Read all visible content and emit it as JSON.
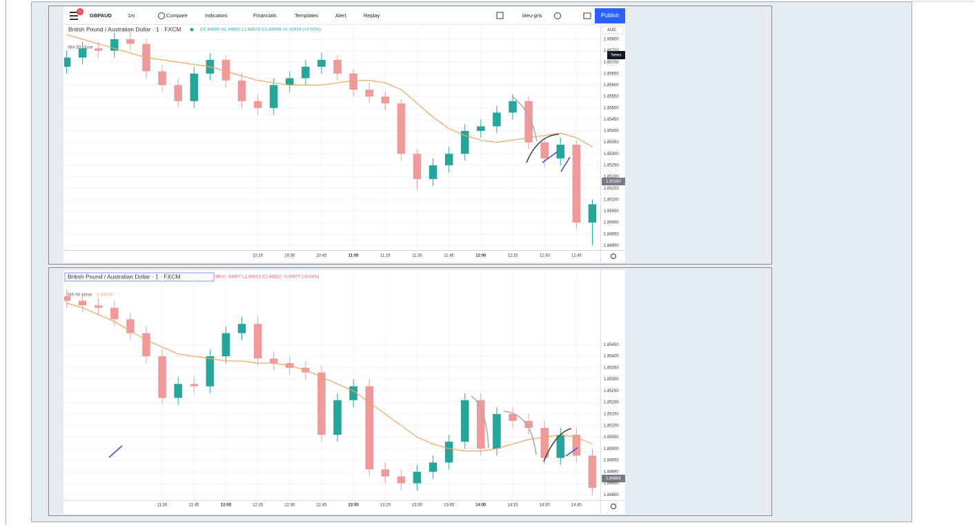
{
  "toolbar": {
    "badge": "11",
    "symbol": "GBPAUD",
    "interval": "1m",
    "compare": "Compare",
    "indicators": "Indicators",
    "financials": "Financials",
    "templates": "Templates",
    "alert": "Alert",
    "replay": "Replay",
    "layout": "bleu-gris",
    "publish": "Publish"
  },
  "chart_data": [
    {
      "type": "candlestick",
      "title": "British Pound / Australian Dollar · 1 · FXCM",
      "ohlc": "O1.84580 H1.84602 L1.84578 C1.84599 +0.00019 (+0.01%)",
      "currency": "AUD",
      "news": "News",
      "last_price": "1.85180",
      "categories": [
        null,
        null,
        null,
        null,
        null,
        null,
        null,
        null,
        null,
        null,
        null,
        null,
        "10:15",
        null,
        "10:30",
        null,
        "10:45",
        null,
        "11:00",
        null,
        "11:15",
        null,
        "11:30",
        null,
        "11:45",
        null,
        "12:00",
        null,
        "12:15",
        null,
        "12:30",
        null,
        "12:45",
        null
      ],
      "open": [
        1.8568,
        1.8572,
        1.8576,
        1.8575,
        1.858,
        1.8578,
        1.8566,
        1.856,
        1.8553,
        1.8565,
        1.8571,
        1.8562,
        1.8553,
        1.855,
        1.856,
        1.8563,
        1.8568,
        1.8571,
        1.8565,
        1.8558,
        1.8555,
        1.8552,
        1.853,
        1.8519,
        1.8525,
        1.853,
        1.854,
        1.8542,
        1.8548,
        1.8553,
        1.8535,
        1.8528,
        1.8534,
        1.85
      ],
      "high": [
        1.8575,
        1.8579,
        1.8579,
        1.8583,
        1.8583,
        1.858,
        1.8569,
        1.8563,
        1.8568,
        1.8574,
        1.8573,
        1.8565,
        1.8556,
        1.8563,
        1.8566,
        1.8571,
        1.8574,
        1.8573,
        1.8567,
        1.8561,
        1.8557,
        1.8554,
        1.8532,
        1.8528,
        1.8533,
        1.8543,
        1.8545,
        1.8551,
        1.8556,
        1.8555,
        1.8537,
        1.8537,
        1.8536,
        1.851
      ],
      "low": [
        1.8565,
        1.8569,
        1.8572,
        1.8572,
        1.8575,
        1.8563,
        1.8557,
        1.855,
        1.855,
        1.8562,
        1.8559,
        1.855,
        1.8547,
        1.8547,
        1.8557,
        1.856,
        1.8565,
        1.8562,
        1.8555,
        1.8552,
        1.8549,
        1.8527,
        1.8514,
        1.8516,
        1.8522,
        1.8527,
        1.8537,
        1.8539,
        1.8545,
        1.8532,
        1.8524,
        1.8525,
        1.8497,
        1.849
      ],
      "close": [
        1.8572,
        1.8576,
        1.8575,
        1.858,
        1.8578,
        1.8566,
        1.856,
        1.8553,
        1.8565,
        1.8571,
        1.8562,
        1.8553,
        1.855,
        1.856,
        1.8563,
        1.8568,
        1.8571,
        1.8565,
        1.8558,
        1.8555,
        1.8552,
        1.853,
        1.8519,
        1.8525,
        1.853,
        1.854,
        1.8542,
        1.8548,
        1.8553,
        1.8535,
        1.8528,
        1.8534,
        1.85,
        1.8508
      ],
      "up_color": "#26a69a",
      "down_color": "#ef9a9a",
      "series": [
        {
          "name": "MA 50 close",
          "color": "#f7a35c",
          "values": [
            1.8582,
            1.858,
            1.8578,
            1.8576,
            1.8574,
            1.8572,
            1.8571,
            1.857,
            1.8569,
            1.8568,
            1.8566,
            1.8564,
            1.8562,
            1.8561,
            1.856,
            1.856,
            1.856,
            1.8561,
            1.8562,
            1.8562,
            1.8561,
            1.8558,
            1.8552,
            1.8546,
            1.8541,
            1.8538,
            1.8536,
            1.8535,
            1.8536,
            1.8537,
            1.8538,
            1.8539,
            1.8537,
            1.8533
          ]
        }
      ],
      "ylim": [
        1.8488,
        1.8586
      ],
      "yticks": [
        {
          "value": 1.849,
          "label": "1.84900"
        },
        {
          "value": 1.8495,
          "label": "1.84950"
        },
        {
          "value": 1.85,
          "label": "1.85000"
        },
        {
          "value": 1.8505,
          "label": "1.85050"
        },
        {
          "value": 1.851,
          "label": "1.85100"
        },
        {
          "value": 1.8515,
          "label": "1.85150"
        },
        {
          "value": 1.852,
          "label": "1.85200"
        },
        {
          "value": 1.8525,
          "label": "1.85250"
        },
        {
          "value": 1.853,
          "label": "1.85300"
        },
        {
          "value": 1.8535,
          "label": "1.85350"
        },
        {
          "value": 1.854,
          "label": "1.85400"
        },
        {
          "value": 1.8545,
          "label": "1.85450"
        },
        {
          "value": 1.855,
          "label": "1.85500"
        },
        {
          "value": 1.8555,
          "label": "1.85550"
        },
        {
          "value": 1.856,
          "label": "1.85600"
        },
        {
          "value": 1.8565,
          "label": "1.85650"
        },
        {
          "value": 1.857,
          "label": "1.85700"
        },
        {
          "value": 1.8575,
          "label": "1.85750"
        },
        {
          "value": 1.858,
          "label": "1.85800"
        }
      ],
      "grid": true
    },
    {
      "type": "candlestick",
      "title": "British Pound / Australian Dollar · 1 · FXCM",
      "ohlc": "99 H1.84607 L1.84512 C1.84512 -0.00077 (-0.04%)",
      "ma_value": "1.84535",
      "last_price": "1.84868",
      "categories": [
        null,
        null,
        null,
        null,
        null,
        null,
        "11:30",
        null,
        "11:45",
        null,
        "12:00",
        null,
        "12:15",
        null,
        "12:30",
        null,
        "12:45",
        null,
        "13:00",
        null,
        "13:15",
        null,
        "13:30",
        null,
        "13:45",
        null,
        "14:00",
        null,
        "14:15",
        null,
        "14:30",
        null,
        "14:45",
        null
      ],
      "open": [
        1.8566,
        1.8564,
        1.8562,
        1.8561,
        1.8556,
        1.855,
        1.854,
        1.8522,
        1.8528,
        1.8527,
        1.854,
        1.855,
        1.8554,
        1.8539,
        1.8537,
        1.8535,
        1.8533,
        1.8506,
        1.8521,
        1.8527,
        1.8491,
        1.8488,
        1.8485,
        1.849,
        1.8494,
        1.8503,
        1.8521,
        1.85,
        1.8515,
        1.8512,
        1.8509,
        1.8496,
        1.8506,
        1.8497
      ],
      "high": [
        1.8569,
        1.8567,
        1.8565,
        1.8564,
        1.8559,
        1.8553,
        1.8543,
        1.8531,
        1.8531,
        1.8543,
        1.8553,
        1.8557,
        1.8557,
        1.8542,
        1.854,
        1.8538,
        1.8536,
        1.8524,
        1.853,
        1.853,
        1.8494,
        1.8491,
        1.8493,
        1.8497,
        1.8506,
        1.8524,
        1.8524,
        1.8518,
        1.8518,
        1.8515,
        1.8512,
        1.8509,
        1.8509,
        1.85
      ],
      "low": [
        1.8561,
        1.8559,
        1.8558,
        1.8553,
        1.8547,
        1.8537,
        1.8519,
        1.8519,
        1.8524,
        1.8524,
        1.8537,
        1.8547,
        1.8536,
        1.8534,
        1.8532,
        1.853,
        1.8503,
        1.8503,
        1.8518,
        1.8488,
        1.8485,
        1.8482,
        1.8482,
        1.8487,
        1.8491,
        1.85,
        1.8497,
        1.8497,
        1.8509,
        1.8506,
        1.8493,
        1.8493,
        1.8494,
        1.848
      ],
      "close": [
        1.8564,
        1.8562,
        1.8561,
        1.8556,
        1.855,
        1.854,
        1.8522,
        1.8528,
        1.8527,
        1.854,
        1.855,
        1.8554,
        1.8539,
        1.8537,
        1.8535,
        1.8533,
        1.8506,
        1.8521,
        1.8527,
        1.8491,
        1.8488,
        1.8485,
        1.849,
        1.8494,
        1.8503,
        1.8521,
        1.85,
        1.8515,
        1.8512,
        1.8509,
        1.8496,
        1.8506,
        1.8497,
        1.8483
      ],
      "up_color": "#26a69a",
      "down_color": "#ef9a9a",
      "series": [
        {
          "name": "MA 50 close",
          "color": "#f7a35c",
          "values": [
            1.8563,
            1.8561,
            1.8558,
            1.8555,
            1.8551,
            1.8547,
            1.8544,
            1.8541,
            1.854,
            1.8539,
            1.8538,
            1.8538,
            1.8537,
            1.8537,
            1.8536,
            1.8534,
            1.8531,
            1.8528,
            1.8525,
            1.852,
            1.8515,
            1.851,
            1.8505,
            1.8502,
            1.85,
            1.8499,
            1.8499,
            1.85,
            1.8502,
            1.8504,
            1.8505,
            1.8506,
            1.8505,
            1.8502
          ]
        }
      ],
      "ylim": [
        1.8478,
        1.8577
      ],
      "yticks": [
        {
          "value": 1.848,
          "label": "1.84800"
        },
        {
          "value": 1.8485,
          "label": "1.84850"
        },
        {
          "value": 1.849,
          "label": "1.84900"
        },
        {
          "value": 1.8495,
          "label": "1.84950"
        },
        {
          "value": 1.85,
          "label": "1.85000"
        },
        {
          "value": 1.8505,
          "label": "1.85050"
        },
        {
          "value": 1.851,
          "label": "1.85100"
        },
        {
          "value": 1.8515,
          "label": "1.85150"
        },
        {
          "value": 1.852,
          "label": "1.85200"
        },
        {
          "value": 1.8525,
          "label": "1.85250"
        },
        {
          "value": 1.853,
          "label": "1.85300"
        },
        {
          "value": 1.8535,
          "label": "1.85350"
        },
        {
          "value": 1.854,
          "label": "1.85400"
        },
        {
          "value": 1.8545,
          "label": "1.85450"
        }
      ],
      "grid": true
    }
  ]
}
